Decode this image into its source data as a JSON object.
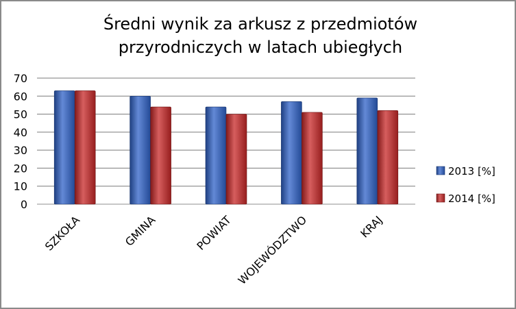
{
  "chart_data": {
    "type": "bar",
    "title_lines": [
      "Średni wynik za arkusz z przedmiotów",
      "przyrodniczych w latach ubiegłych"
    ],
    "categories": [
      "SZKOŁA",
      "GMINA",
      "POWIAT",
      "WOJEWÓDZTWO",
      "KRAJ"
    ],
    "series": [
      {
        "name": "2013 [%]",
        "values": [
          63,
          60,
          54,
          57,
          59
        ],
        "color": "#2f62c8"
      },
      {
        "name": "2014 [%]",
        "values": [
          63,
          54,
          50,
          51,
          52
        ],
        "color": "#c82828"
      }
    ],
    "ylim": [
      0,
      70
    ],
    "yticks": [
      0,
      10,
      20,
      30,
      40,
      50,
      60,
      70
    ],
    "grid": true,
    "legend_position": "right"
  }
}
